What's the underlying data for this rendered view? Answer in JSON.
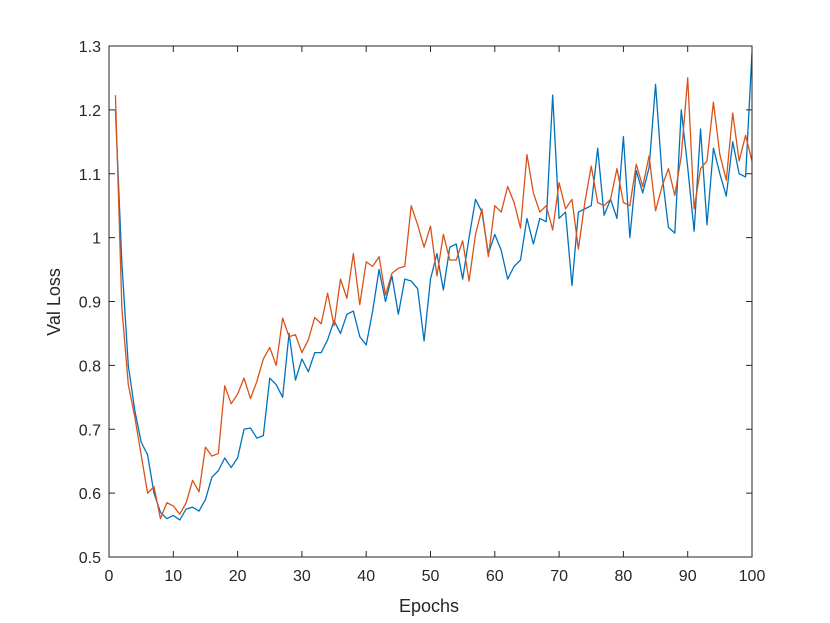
{
  "chart_data": {
    "type": "line",
    "title": "",
    "xlabel": "Epochs",
    "ylabel": "Val Loss",
    "xlim": [
      0,
      100
    ],
    "ylim": [
      0.5,
      1.3
    ],
    "xticks": [
      0,
      10,
      20,
      30,
      40,
      50,
      60,
      70,
      80,
      90,
      100
    ],
    "yticks": [
      0.5,
      0.6,
      0.7,
      0.8,
      0.9,
      1.0,
      1.1,
      1.2,
      1.3
    ],
    "ytick_labels": [
      "0.5",
      "0.6",
      "0.7",
      "0.8",
      "0.9",
      "1",
      "1.1",
      "1.2",
      "1.3"
    ],
    "grid": false,
    "box": true,
    "series": [
      {
        "color": "#0072BD",
        "x": [
          1,
          2,
          3,
          4,
          5,
          6,
          7,
          8,
          9,
          10,
          11,
          12,
          13,
          14,
          15,
          16,
          17,
          18,
          19,
          20,
          21,
          22,
          23,
          24,
          25,
          26,
          27,
          28,
          29,
          30,
          31,
          32,
          33,
          34,
          35,
          36,
          37,
          38,
          39,
          40,
          41,
          42,
          43,
          44,
          45,
          46,
          47,
          48,
          49,
          50,
          51,
          52,
          53,
          54,
          55,
          56,
          57,
          58,
          59,
          60,
          61,
          62,
          63,
          64,
          65,
          66,
          67,
          68,
          69,
          70,
          71,
          72,
          73,
          74,
          75,
          76,
          77,
          78,
          79,
          80,
          81,
          82,
          83,
          84,
          85,
          86,
          87,
          88,
          89,
          90,
          91,
          92,
          93,
          94,
          95,
          96,
          97,
          98,
          99,
          100
        ],
        "y": [
          1.2,
          0.96,
          0.8,
          0.73,
          0.68,
          0.66,
          0.6,
          0.57,
          0.56,
          0.565,
          0.558,
          0.575,
          0.578,
          0.572,
          0.59,
          0.625,
          0.635,
          0.655,
          0.64,
          0.655,
          0.7,
          0.702,
          0.686,
          0.69,
          0.78,
          0.77,
          0.75,
          0.85,
          0.777,
          0.81,
          0.79,
          0.82,
          0.82,
          0.84,
          0.87,
          0.85,
          0.88,
          0.885,
          0.845,
          0.832,
          0.885,
          0.95,
          0.9,
          0.94,
          0.88,
          0.935,
          0.932,
          0.92,
          0.838,
          0.935,
          0.975,
          0.918,
          0.985,
          0.99,
          0.935,
          1.0,
          1.06,
          1.04,
          0.975,
          1.005,
          0.98,
          0.935,
          0.955,
          0.965,
          1.03,
          0.99,
          1.03,
          1.025,
          1.223,
          1.03,
          1.04,
          0.925,
          1.04,
          1.045,
          1.05,
          1.14,
          1.035,
          1.06,
          1.03,
          1.158,
          1.0,
          1.105,
          1.07,
          1.11,
          1.24,
          1.1,
          1.016,
          1.007,
          1.2,
          1.11,
          1.01,
          1.17,
          1.02,
          1.14,
          1.1,
          1.065,
          1.15,
          1.1,
          1.095,
          1.29
        ]
      },
      {
        "color": "#D95319",
        "x": [
          1,
          2,
          3,
          4,
          5,
          6,
          7,
          8,
          9,
          10,
          11,
          12,
          13,
          14,
          15,
          16,
          17,
          18,
          19,
          20,
          21,
          22,
          23,
          24,
          25,
          26,
          27,
          28,
          29,
          30,
          31,
          32,
          33,
          34,
          35,
          36,
          37,
          38,
          39,
          40,
          41,
          42,
          43,
          44,
          45,
          46,
          47,
          48,
          49,
          50,
          51,
          52,
          53,
          54,
          55,
          56,
          57,
          58,
          59,
          60,
          61,
          62,
          63,
          64,
          65,
          66,
          67,
          68,
          69,
          70,
          71,
          72,
          73,
          74,
          75,
          76,
          77,
          78,
          79,
          80,
          81,
          82,
          83,
          84,
          85,
          86,
          87,
          88,
          89,
          90,
          91,
          92,
          93,
          94,
          95,
          96,
          97,
          98,
          99,
          100
        ],
        "y": [
          1.223,
          0.89,
          0.77,
          0.72,
          0.66,
          0.6,
          0.61,
          0.56,
          0.585,
          0.58,
          0.567,
          0.585,
          0.62,
          0.602,
          0.672,
          0.658,
          0.662,
          0.768,
          0.74,
          0.755,
          0.78,
          0.748,
          0.775,
          0.81,
          0.828,
          0.8,
          0.874,
          0.845,
          0.848,
          0.82,
          0.84,
          0.875,
          0.865,
          0.913,
          0.862,
          0.935,
          0.905,
          0.975,
          0.895,
          0.962,
          0.955,
          0.97,
          0.91,
          0.944,
          0.952,
          0.955,
          1.05,
          1.02,
          0.985,
          1.018,
          0.94,
          1.005,
          0.965,
          0.965,
          0.995,
          0.932,
          1.005,
          1.045,
          0.97,
          1.05,
          1.04,
          1.08,
          1.055,
          1.015,
          1.13,
          1.07,
          1.04,
          1.05,
          1.012,
          1.086,
          1.045,
          1.06,
          0.982,
          1.055,
          1.112,
          1.055,
          1.05,
          1.06,
          1.108,
          1.055,
          1.05,
          1.115,
          1.08,
          1.128,
          1.042,
          1.08,
          1.108,
          1.066,
          1.128,
          1.25,
          1.045,
          1.108,
          1.12,
          1.212,
          1.13,
          1.09,
          1.195,
          1.12,
          1.16,
          1.12
        ]
      }
    ]
  }
}
